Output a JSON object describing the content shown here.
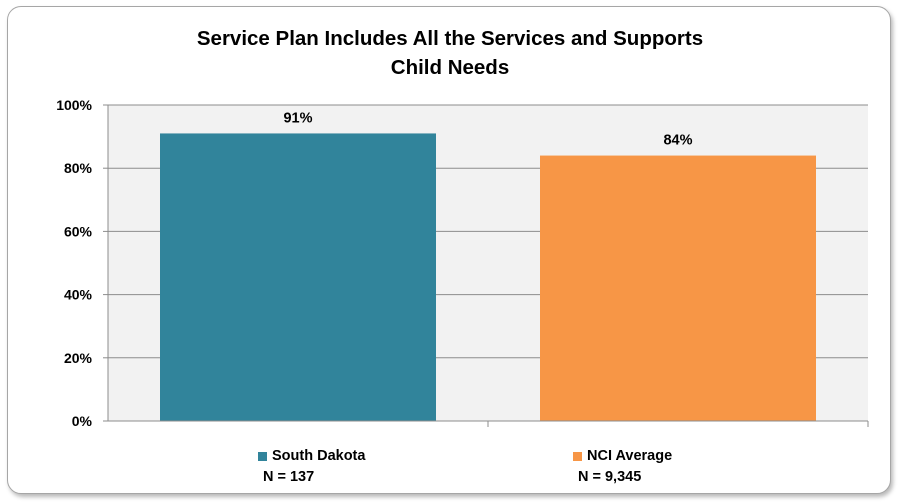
{
  "chart_data": {
    "type": "bar",
    "title": "Service Plan Includes All the Services and Supports Child Needs",
    "title_lines": [
      "Service Plan Includes All the Services and Supports",
      "Child Needs"
    ],
    "categories": [
      "South Dakota",
      "NCI Average"
    ],
    "values": [
      91,
      84
    ],
    "value_labels": [
      "91%",
      "84%"
    ],
    "colors": [
      "#31849b",
      "#f79646"
    ],
    "ylim": [
      0,
      100
    ],
    "yticks": [
      0,
      20,
      40,
      60,
      80,
      100
    ],
    "ytick_labels": [
      "0%",
      "20%",
      "40%",
      "60%",
      "80%",
      "100%"
    ],
    "grid": true,
    "plot_background": "#f2f2f2",
    "legend": {
      "position": "bottom",
      "entries": [
        {
          "label": "South Dakota",
          "n": "N = 137",
          "color": "#31849b"
        },
        {
          "label": "NCI Average",
          "n": "N = 9,345",
          "color": "#f79646"
        }
      ]
    }
  }
}
